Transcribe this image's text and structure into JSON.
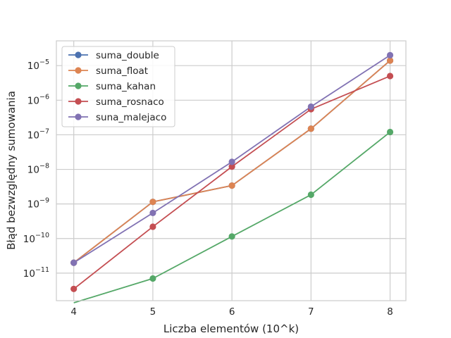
{
  "chart_data": {
    "type": "line",
    "title": "",
    "xlabel": "Liczba elementów (10^k)",
    "ylabel": "Błąd bezwzględny sumowania",
    "x": [
      4,
      5,
      6,
      7,
      8
    ],
    "x_ticks": [
      "4",
      "5",
      "6",
      "7",
      "8"
    ],
    "xlim": [
      3.78,
      8.2
    ],
    "y_scale": "log",
    "ylim": [
      1.6e-12,
      5.2e-05
    ],
    "y_ticks": [
      {
        "value": 1e-11,
        "base": "10",
        "exp": "−11"
      },
      {
        "value": 1e-10,
        "base": "10",
        "exp": "−10"
      },
      {
        "value": 1e-09,
        "base": "10",
        "exp": "−9"
      },
      {
        "value": 1e-08,
        "base": "10",
        "exp": "−8"
      },
      {
        "value": 1e-07,
        "base": "10",
        "exp": "−7"
      },
      {
        "value": 1e-06,
        "base": "10",
        "exp": "−6"
      },
      {
        "value": 1e-05,
        "base": "10",
        "exp": "−5"
      }
    ],
    "grid": true,
    "legend_position": "top-left",
    "series": [
      {
        "name": "suma_double",
        "color": "#4c72b0",
        "values": [
          2e-11,
          1.15e-09,
          3.4e-09,
          1.5e-07,
          1.4e-05
        ]
      },
      {
        "name": "suma_float",
        "color": "#dd8452",
        "values": [
          2e-11,
          1.15e-09,
          3.4e-09,
          1.5e-07,
          1.4e-05
        ]
      },
      {
        "name": "suma_kahan",
        "color": "#55a868",
        "values": [
          0,
          7e-12,
          1.15e-10,
          1.85e-09,
          1.2e-07
        ]
      },
      {
        "name": "suma_rosnaco",
        "color": "#c44e52",
        "values": [
          3.5e-12,
          2.2e-10,
          1.2e-08,
          5.5e-07,
          5e-06
        ]
      },
      {
        "name": "suna_malejaco",
        "color": "#8172b3",
        "values": [
          2e-11,
          5.5e-10,
          1.65e-08,
          6.5e-07,
          2e-05
        ]
      }
    ]
  }
}
